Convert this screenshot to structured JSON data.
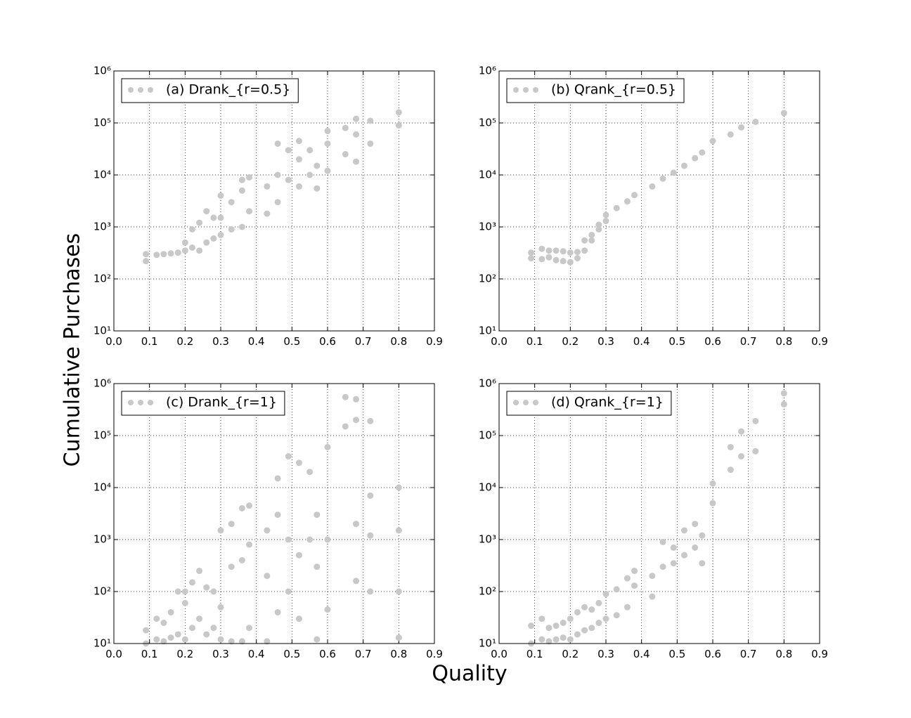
{
  "xlabel": "Quality",
  "ylabel": "Cumulative Purchases",
  "chart_data": [
    {
      "type": "scatter",
      "legend": "upper left",
      "grid": true,
      "log_y": true,
      "xlim": [
        0,
        0.9
      ],
      "xticks": [
        {
          "value": 0,
          "label": "0.0"
        },
        0.1,
        0.2,
        0.3,
        0.4,
        0.5,
        0.6,
        0.7,
        0.8,
        0.9
      ],
      "ylim": [
        10,
        1000000
      ],
      "yticks": [
        {
          "value": 10,
          "label": "10¹"
        },
        {
          "value": 100,
          "label": "10²"
        },
        {
          "value": 1000,
          "label": "10³"
        },
        {
          "value": 10000,
          "label": "10⁴"
        },
        {
          "value": 100000,
          "label": "10⁵"
        },
        {
          "value": 1000000,
          "label": "10⁶"
        }
      ],
      "x": [
        0.09,
        0.09,
        0.12,
        0.14,
        0.16,
        0.18,
        0.2,
        0.2,
        0.22,
        0.22,
        0.24,
        0.24,
        0.26,
        0.26,
        0.28,
        0.28,
        0.3,
        0.3,
        0.3,
        0.33,
        0.33,
        0.36,
        0.36,
        0.36,
        0.38,
        0.38,
        0.43,
        0.43,
        0.46,
        0.46,
        0.46,
        0.49,
        0.49,
        0.52,
        0.52,
        0.52,
        0.55,
        0.55,
        0.57,
        0.57,
        0.6,
        0.6,
        0.6,
        0.65,
        0.65,
        0.68,
        0.68,
        0.68,
        0.72,
        0.72,
        0.8,
        0.8
      ],
      "series": [
        {
          "name": "(a) Drank_{r=0.5}",
          "color": "#c8c8c8",
          "values": [
            220,
            300,
            290,
            300,
            310,
            320,
            350,
            500,
            400,
            900,
            350,
            1200,
            500,
            2000,
            600,
            1500,
            700,
            4000,
            1500,
            900,
            3000,
            1000,
            5000,
            8000,
            2000,
            9000,
            1800,
            6000,
            3000,
            10000,
            40000,
            8000,
            30000,
            6000,
            20000,
            45000,
            10000,
            30000,
            5500,
            15000,
            12000,
            40000,
            70000,
            25000,
            80000,
            18000,
            60000,
            120000,
            40000,
            110000,
            90000,
            160000
          ]
        }
      ]
    },
    {
      "type": "scatter",
      "legend": "upper left",
      "grid": true,
      "log_y": true,
      "xlim": [
        0,
        0.9
      ],
      "xticks": [
        {
          "value": 0,
          "label": "0.0"
        },
        0.1,
        0.2,
        0.3,
        0.4,
        0.5,
        0.6,
        0.7,
        0.8,
        0.9
      ],
      "ylim": [
        10,
        1000000
      ],
      "yticks": [
        {
          "value": 10,
          "label": "10¹"
        },
        {
          "value": 100,
          "label": "10²"
        },
        {
          "value": 1000,
          "label": "10³"
        },
        {
          "value": 10000,
          "label": "10⁴"
        },
        {
          "value": 100000,
          "label": "10⁵"
        },
        {
          "value": 1000000,
          "label": "10⁶"
        }
      ],
      "x": [
        0.09,
        0.09,
        0.12,
        0.12,
        0.14,
        0.14,
        0.16,
        0.16,
        0.18,
        0.18,
        0.2,
        0.2,
        0.22,
        0.22,
        0.24,
        0.24,
        0.26,
        0.26,
        0.28,
        0.28,
        0.3,
        0.3,
        0.33,
        0.36,
        0.38,
        0.43,
        0.46,
        0.49,
        0.52,
        0.55,
        0.57,
        0.6,
        0.65,
        0.68,
        0.72,
        0.8
      ],
      "series": [
        {
          "name": "(b) Qrank_{r=0.5}",
          "color": "#c8c8c8",
          "values": [
            250,
            320,
            240,
            380,
            260,
            350,
            230,
            350,
            220,
            340,
            210,
            320,
            250,
            330,
            350,
            550,
            550,
            700,
            900,
            1100,
            1300,
            1700,
            2300,
            3100,
            4100,
            6000,
            8500,
            11000,
            15000,
            21000,
            27000,
            45000,
            60000,
            82000,
            105000,
            155000
          ]
        }
      ]
    },
    {
      "type": "scatter",
      "legend": "upper left",
      "grid": true,
      "log_y": true,
      "xlim": [
        0,
        0.9
      ],
      "xticks": [
        {
          "value": 0,
          "label": "0.0"
        },
        0.1,
        0.2,
        0.3,
        0.4,
        0.5,
        0.6,
        0.7,
        0.8,
        0.9
      ],
      "ylim": [
        10,
        1000000
      ],
      "yticks": [
        {
          "value": 10,
          "label": "10¹"
        },
        {
          "value": 100,
          "label": "10²"
        },
        {
          "value": 1000,
          "label": "10³"
        },
        {
          "value": 10000,
          "label": "10⁴"
        },
        {
          "value": 100000,
          "label": "10⁵"
        },
        {
          "value": 1000000,
          "label": "10⁶"
        }
      ],
      "x": [
        0.09,
        0.09,
        0.12,
        0.12,
        0.14,
        0.14,
        0.16,
        0.16,
        0.18,
        0.18,
        0.2,
        0.2,
        0.2,
        0.22,
        0.22,
        0.24,
        0.24,
        0.26,
        0.26,
        0.28,
        0.28,
        0.3,
        0.3,
        0.3,
        0.33,
        0.33,
        0.33,
        0.36,
        0.36,
        0.36,
        0.38,
        0.38,
        0.38,
        0.43,
        0.43,
        0.43,
        0.46,
        0.46,
        0.46,
        0.49,
        0.49,
        0.49,
        0.52,
        0.52,
        0.52,
        0.55,
        0.55,
        0.57,
        0.57,
        0.57,
        0.6,
        0.6,
        0.6,
        0.65,
        0.65,
        0.68,
        0.68,
        0.68,
        0.68,
        0.72,
        0.72,
        0.72,
        0.72,
        0.8,
        0.8,
        0.8,
        0.8
      ],
      "series": [
        {
          "name": "(c) Drank_{r=1}",
          "color": "#c8c8c8",
          "values": [
            10,
            18,
            12,
            30,
            11,
            25,
            13,
            40,
            15,
            100,
            12,
            60,
            100,
            20,
            150,
            30,
            250,
            15,
            120,
            20,
            100,
            12,
            50,
            1500,
            11,
            300,
            2000,
            11,
            400,
            4000,
            20,
            800,
            4500,
            11,
            200,
            1500,
            40,
            3000,
            15000,
            100,
            1000,
            40000,
            30,
            500,
            30000,
            1000,
            20000,
            12,
            300,
            3000,
            45,
            1000,
            60000,
            150000,
            550000,
            160,
            2000,
            200000,
            500000,
            100,
            1200,
            7000,
            190000,
            13,
            100,
            1500,
            10000
          ]
        }
      ]
    },
    {
      "type": "scatter",
      "legend": "upper left",
      "grid": true,
      "log_y": true,
      "xlim": [
        0,
        0.9
      ],
      "xticks": [
        {
          "value": 0,
          "label": "0.0"
        },
        0.1,
        0.2,
        0.3,
        0.4,
        0.5,
        0.6,
        0.7,
        0.8,
        0.9
      ],
      "ylim": [
        10,
        1000000
      ],
      "yticks": [
        {
          "value": 10,
          "label": "10¹"
        },
        {
          "value": 100,
          "label": "10²"
        },
        {
          "value": 1000,
          "label": "10³"
        },
        {
          "value": 10000,
          "label": "10⁴"
        },
        {
          "value": 100000,
          "label": "10⁵"
        },
        {
          "value": 1000000,
          "label": "10⁶"
        }
      ],
      "x": [
        0.09,
        0.09,
        0.12,
        0.12,
        0.14,
        0.14,
        0.16,
        0.16,
        0.18,
        0.18,
        0.2,
        0.2,
        0.22,
        0.22,
        0.24,
        0.24,
        0.26,
        0.26,
        0.28,
        0.28,
        0.3,
        0.3,
        0.33,
        0.33,
        0.36,
        0.36,
        0.38,
        0.38,
        0.43,
        0.43,
        0.46,
        0.46,
        0.49,
        0.49,
        0.52,
        0.52,
        0.55,
        0.55,
        0.57,
        0.57,
        0.6,
        0.6,
        0.65,
        0.65,
        0.68,
        0.68,
        0.72,
        0.72,
        0.8,
        0.8
      ],
      "series": [
        {
          "name": "(d) Qrank_{r=1}",
          "color": "#c8c8c8",
          "values": [
            10,
            22,
            12,
            30,
            11,
            20,
            12,
            22,
            13,
            25,
            12,
            30,
            15,
            40,
            18,
            50,
            20,
            45,
            25,
            60,
            30,
            90,
            35,
            110,
            50,
            180,
            130,
            250,
            80,
            200,
            300,
            900,
            350,
            700,
            500,
            1500,
            700,
            2000,
            350,
            1200,
            5000,
            12000,
            22000,
            60000,
            40000,
            120000,
            50000,
            190000,
            400000,
            650000
          ]
        }
      ]
    }
  ]
}
